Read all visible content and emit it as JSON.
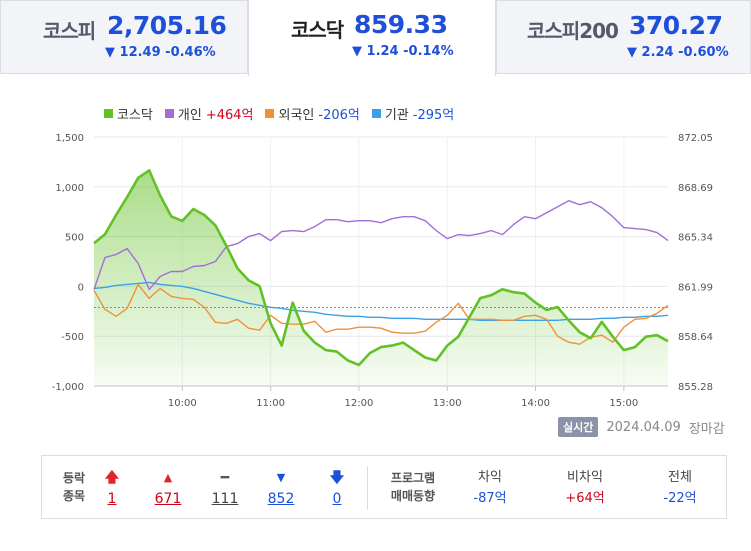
{
  "tabs": [
    {
      "name": "코스피",
      "value": "2,705.16",
      "change": "▼ 12.49 -0.46%",
      "active": false
    },
    {
      "name": "코스닥",
      "value": "859.33",
      "change": "▼ 1.24 -0.14%",
      "active": true
    },
    {
      "name": "코스피200",
      "value": "370.27",
      "change": "▼ 2.24 -0.60%",
      "active": false
    }
  ],
  "legend": [
    {
      "label": "코스닥",
      "value": "",
      "color": "#63c128",
      "sign": ""
    },
    {
      "label": "개인",
      "value": "+464억",
      "color": "#a36ed6",
      "sign": "pos"
    },
    {
      "label": "외국인",
      "value": "-206억",
      "color": "#f0913a",
      "sign": "neg"
    },
    {
      "label": "기관",
      "value": "-295억",
      "color": "#3aa0e8",
      "sign": "neg"
    }
  ],
  "chart_data": {
    "type": "line",
    "x_ticks": [
      "10:00",
      "11:00",
      "12:00",
      "13:00",
      "14:00",
      "15:00"
    ],
    "y_left_ticks": [
      "1,500",
      "1,000",
      "500",
      "0",
      "-500",
      "-1,000"
    ],
    "y_left_range": [
      -1000,
      1500
    ],
    "y_right_ticks": [
      "872.05",
      "868.69",
      "865.34",
      "861.99",
      "858.64",
      "855.28"
    ],
    "y_right_range": [
      855.28,
      872.05
    ],
    "reference_line": 860.57,
    "series": [
      {
        "name": "코스닥",
        "color": "#63c128",
        "axis": "right",
        "values": [
          864.9,
          865.5,
          866.8,
          868.0,
          869.3,
          869.8,
          868.1,
          866.7,
          866.4,
          867.2,
          866.8,
          866.1,
          864.7,
          863.2,
          862.4,
          862.0,
          859.5,
          858.0,
          860.9,
          859.0,
          858.2,
          857.7,
          857.6,
          857.0,
          856.7,
          857.5,
          857.9,
          858.0,
          858.2,
          857.7,
          857.2,
          857.0,
          858.0,
          858.6,
          859.9,
          861.2,
          861.4,
          861.8,
          861.6,
          861.5,
          860.9,
          860.4,
          860.6,
          859.7,
          858.9,
          858.5,
          859.6,
          858.6,
          857.7,
          857.9,
          858.6,
          858.7,
          858.3
        ]
      },
      {
        "name": "개인",
        "color": "#a36ed6",
        "axis": "left",
        "values": [
          -30,
          290,
          320,
          380,
          230,
          -30,
          100,
          150,
          150,
          200,
          210,
          250,
          400,
          430,
          500,
          530,
          460,
          550,
          560,
          550,
          600,
          670,
          670,
          650,
          660,
          660,
          640,
          680,
          700,
          700,
          660,
          560,
          480,
          520,
          510,
          530,
          560,
          520,
          620,
          700,
          680,
          740,
          800,
          860,
          820,
          850,
          790,
          700,
          590,
          580,
          570,
          540,
          460
        ]
      },
      {
        "name": "외국인",
        "color": "#f0913a",
        "axis": "left",
        "values": [
          -40,
          -230,
          -300,
          -220,
          20,
          -120,
          -20,
          -100,
          -120,
          -130,
          -210,
          -360,
          -370,
          -330,
          -420,
          -440,
          -290,
          -370,
          -380,
          -380,
          -350,
          -460,
          -430,
          -430,
          -410,
          -410,
          -420,
          -460,
          -470,
          -470,
          -450,
          -360,
          -290,
          -170,
          -330,
          -330,
          -330,
          -340,
          -340,
          -300,
          -290,
          -330,
          -500,
          -560,
          -580,
          -510,
          -490,
          -560,
          -410,
          -330,
          -320,
          -270,
          -190
        ]
      },
      {
        "name": "기관",
        "color": "#3aa0e8",
        "axis": "left",
        "values": [
          -20,
          -10,
          10,
          20,
          30,
          40,
          20,
          10,
          0,
          -20,
          -50,
          -80,
          -110,
          -140,
          -170,
          -190,
          -210,
          -220,
          -240,
          -250,
          -260,
          -280,
          -290,
          -300,
          -300,
          -310,
          -310,
          -320,
          -320,
          -320,
          -330,
          -330,
          -330,
          -330,
          -330,
          -340,
          -340,
          -340,
          -340,
          -340,
          -340,
          -340,
          -340,
          -330,
          -330,
          -330,
          -320,
          -320,
          -310,
          -310,
          -300,
          -300,
          -290
        ]
      }
    ]
  },
  "meta": {
    "realtime_label": "실시간",
    "date": "2024.04.09",
    "status": "장마감"
  },
  "stats": {
    "row_label_1": "등락",
    "row_label_2": "종목",
    "upper_limit": "1",
    "up": "671",
    "unchanged": "111",
    "down": "852",
    "lower_limit": "0",
    "program_label_1": "프로그램",
    "program_label_2": "매매동향",
    "arb_label": "차익",
    "arb_value": "-87억",
    "nonarb_label": "비차익",
    "nonarb_value": "+64억",
    "total_label": "전체",
    "total_value": "-22억"
  }
}
